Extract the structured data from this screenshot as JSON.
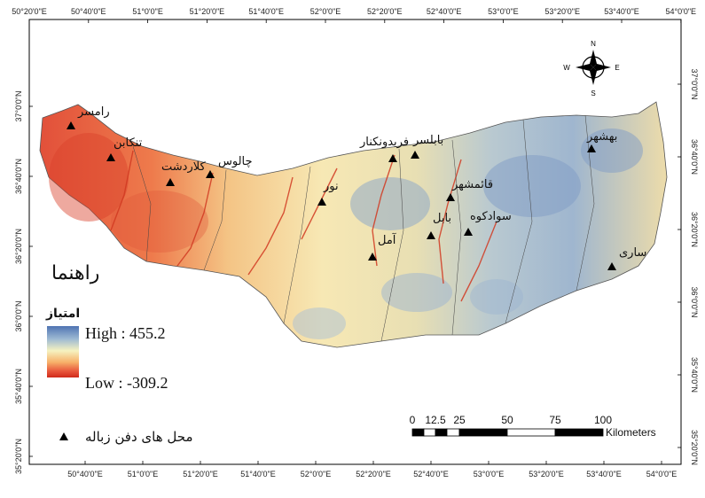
{
  "graticule": {
    "top_ticks": [
      "50°20'0\"E",
      "50°40'0\"E",
      "51°0'0\"E",
      "51°20'0\"E",
      "51°40'0\"E",
      "52°0'0\"E",
      "52°20'0\"E",
      "52°40'0\"E",
      "53°0'0\"E",
      "53°20'0\"E",
      "53°40'0\"E",
      "54°0'0\"E"
    ],
    "bottom_ticks": [
      "50°40'0\"E",
      "51°0'0\"E",
      "51°20'0\"E",
      "51°40'0\"E",
      "52°0'0\"E",
      "52°20'0\"E",
      "52°40'0\"E",
      "53°0'0\"E",
      "53°20'0\"E",
      "53°40'0\"E",
      "54°0'0\"E"
    ],
    "left_ticks": [
      "37°0'0\"N",
      "36°40'0\"N",
      "36°20'0\"N",
      "36°0'0\"N",
      "35°40'0\"N",
      "35°20'0\"N"
    ],
    "right_ticks": [
      "37°0'0\"N",
      "36°40'0\"N",
      "36°20'0\"N",
      "36°0'0\"N",
      "35°40'0\"N",
      "35°20'0\"N"
    ]
  },
  "compass": {
    "n": "N",
    "s": "S",
    "e": "E",
    "w": "W"
  },
  "cities": [
    "رامسر",
    "تنکابن",
    "کلاردشت",
    "چالوس",
    "نور",
    "آمل",
    "بابلسر",
    "فریدونکنار",
    "قائمشهر",
    "بابل",
    "سوادکوه",
    "بهشهر",
    "ساری"
  ],
  "legend": {
    "title": "راهنما",
    "subtitle": "امتیاز",
    "high": "High : 455.2",
    "low": "Low : -309.2",
    "symbol_label": "محل های دفن زباله",
    "colors": [
      "#4f74b3",
      "#9db9d3",
      "#f6f2c0",
      "#f7b26a",
      "#e8553b",
      "#cf2a1a"
    ]
  },
  "scalebar": {
    "labels": [
      "0",
      "12.5",
      "25",
      "50",
      "75",
      "100"
    ],
    "unit": "Kilometers"
  }
}
